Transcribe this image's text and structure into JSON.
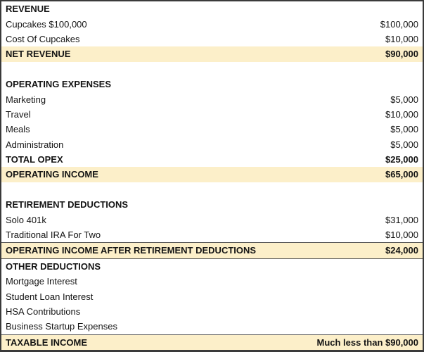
{
  "table": {
    "highlight_color": "#fcefc9",
    "border_color": "#3a3a3a",
    "columns": [
      "item",
      "amount"
    ],
    "rows": [
      {
        "label": "REVENUE",
        "value": "",
        "bold": true,
        "highlight": false
      },
      {
        "label": "Cupcakes $100,000",
        "value": "$100,000",
        "bold": false,
        "highlight": false
      },
      {
        "label": "Cost Of Cupcakes",
        "value": "$10,000",
        "bold": false,
        "highlight": false
      },
      {
        "label": "NET REVENUE",
        "value": "$90,000",
        "bold": true,
        "highlight": true
      },
      {
        "label": "",
        "value": "",
        "bold": false,
        "highlight": false
      },
      {
        "label": "OPERATING EXPENSES",
        "value": "",
        "bold": true,
        "highlight": false
      },
      {
        "label": "Marketing",
        "value": "$5,000",
        "bold": false,
        "highlight": false
      },
      {
        "label": "Travel",
        "value": "$10,000",
        "bold": false,
        "highlight": false
      },
      {
        "label": "Meals",
        "value": "$5,000",
        "bold": false,
        "highlight": false
      },
      {
        "label": "Administration",
        "value": "$5,000",
        "bold": false,
        "highlight": false
      },
      {
        "label": "TOTAL OPEX",
        "value": "$25,000",
        "bold": true,
        "highlight": false
      },
      {
        "label": "OPERATING INCOME",
        "value": "$65,000",
        "bold": true,
        "highlight": true
      },
      {
        "label": "",
        "value": "",
        "bold": false,
        "highlight": false
      },
      {
        "label": "RETIREMENT DEDUCTIONS",
        "value": "",
        "bold": true,
        "highlight": false
      },
      {
        "label": "Solo 401k",
        "value": "$31,000",
        "bold": false,
        "highlight": false
      },
      {
        "label": "Traditional IRA For Two",
        "value": "$10,000",
        "bold": false,
        "highlight": false
      },
      {
        "label": "OPERATING INCOME AFTER RETIREMENT DEDUCTIONS",
        "value": "$24,000",
        "bold": true,
        "highlight": true,
        "border_top": true,
        "border_bottom": true
      },
      {
        "label": "OTHER DEDUCTIONS",
        "value": "",
        "bold": true,
        "highlight": false
      },
      {
        "label": "Mortgage Interest",
        "value": "",
        "bold": false,
        "highlight": false
      },
      {
        "label": "Student Loan Interest",
        "value": "",
        "bold": false,
        "highlight": false
      },
      {
        "label": "HSA Contributions",
        "value": "",
        "bold": false,
        "highlight": false
      },
      {
        "label": "Business Startup Expenses",
        "value": "",
        "bold": false,
        "highlight": false
      },
      {
        "label": "TAXABLE INCOME",
        "value": "Much less than $90,000",
        "bold": true,
        "highlight": true,
        "border_top": true
      }
    ]
  }
}
